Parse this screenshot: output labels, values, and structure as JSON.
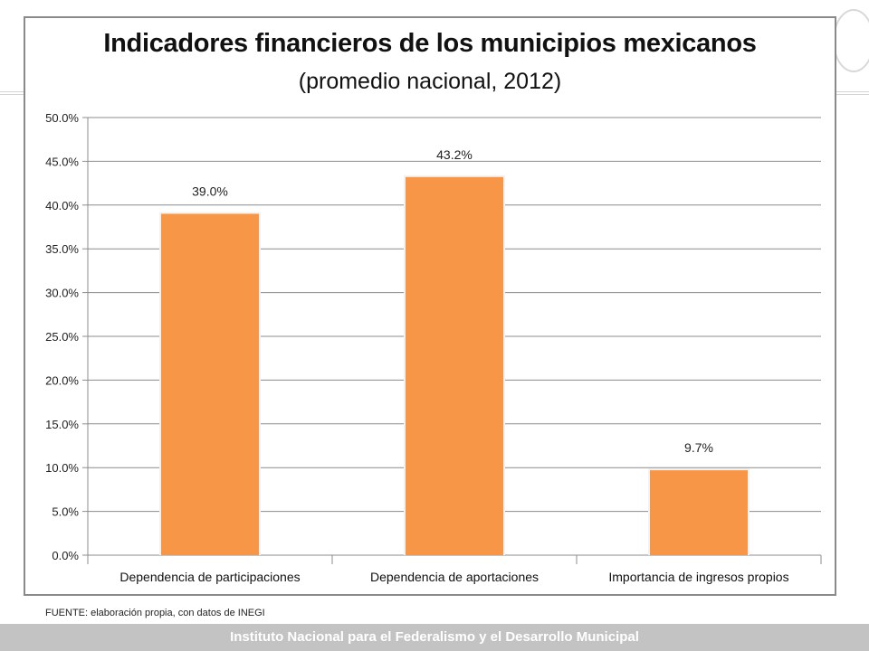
{
  "footnote": "FUENTE: elaboración propia, con datos de INEGI",
  "footer": "Instituto Nacional para el Federalismo y el Desarrollo Municipal",
  "colors": {
    "bar": "#f79646",
    "grid": "#8c8c8c",
    "footer_bg": "#c3c3c3"
  },
  "chart_data": {
    "type": "bar",
    "title": "Indicadores financieros de los municipios mexicanos",
    "subtitle": "(promedio nacional, 2012)",
    "categories": [
      "Dependencia de participaciones",
      "Dependencia de aportaciones",
      "Importancia de ingresos propios"
    ],
    "values": [
      39.0,
      43.2,
      9.7
    ],
    "data_labels": [
      "39.0%",
      "43.2%",
      "9.7%"
    ],
    "ylim": [
      0,
      50
    ],
    "yticks": [
      0,
      5,
      10,
      15,
      20,
      25,
      30,
      35,
      40,
      45,
      50
    ],
    "ytick_labels": [
      "0.0%",
      "5.0%",
      "10.0%",
      "15.0%",
      "20.0%",
      "25.0%",
      "30.0%",
      "35.0%",
      "40.0%",
      "45.0%",
      "50.0%"
    ],
    "grid": true,
    "legend": "none"
  }
}
